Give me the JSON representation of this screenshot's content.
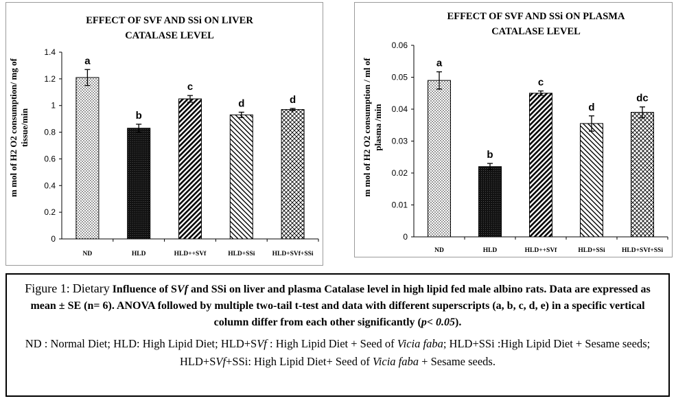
{
  "chart_data": [
    {
      "type": "bar",
      "title_line1": "EFFECT OF SVF AND SSi ON  LIVER",
      "title_line2": "CATALASE LEVEL",
      "ylabel_line1": "m mol of H2 O2 consumption/ mg of",
      "ylabel_line2": "tissue/min",
      "xlabel": "",
      "categories": [
        "ND",
        "HLD",
        "HLD++SVf",
        "HLD+SSi",
        "HLD+SVf+SSi"
      ],
      "values": [
        1.21,
        0.83,
        1.05,
        0.93,
        0.97
      ],
      "errors": [
        0.06,
        0.03,
        0.025,
        0.02,
        0.008
      ],
      "labels": [
        "a",
        "b",
        "c",
        "d",
        "d"
      ],
      "ylim": [
        0,
        1.4
      ],
      "yticks": [
        "0",
        "0.2",
        "0.4",
        "0.6",
        "0.8",
        "1",
        "1.2",
        "1.4"
      ],
      "patterns": [
        "dots",
        "dark",
        "diag-right",
        "diag-left",
        "cross"
      ]
    },
    {
      "type": "bar",
      "title_line1": "EFFECT OF SVF AND SSi  ON  PLASMA",
      "title_line2": "CATALASE LEVEL",
      "ylabel_line1": "m mol of H2 O2 consumption / ml of",
      "ylabel_line2": "plasma /min",
      "xlabel": "",
      "categories": [
        "ND",
        "HLD",
        "HLD++SVf",
        "HLD+SSi",
        "HLD+SVf+SSi"
      ],
      "values": [
        0.049,
        0.022,
        0.045,
        0.0355,
        0.039
      ],
      "errors": [
        0.0027,
        0.001,
        0.0007,
        0.0024,
        0.0017
      ],
      "labels": [
        "a",
        "b",
        "c",
        "d",
        "dc"
      ],
      "ylim": [
        0,
        0.06
      ],
      "yticks": [
        "0",
        "0.01",
        "0.02",
        "0.03",
        "0.04",
        "0.05",
        "0.06"
      ],
      "patterns": [
        "dots",
        "dark",
        "diag-right",
        "diag-left",
        "cross"
      ]
    }
  ],
  "caption": {
    "fig_label": "Figure 1:",
    "lead": "Dietary",
    "part1": "Influence of S",
    "svf_italic": "Vf",
    "part2": "and SSi on liver and plasma Catalase level in high lipid fed male albino rats. Data are expressed as mean ± SE (n= 6). ANOVA followed by multiple two-tail t-test and data with different superscripts (a, b, c, d, e) in a specific vertical column differ from each other significantly (",
    "p_italic": "p< 0.05",
    "part3": ").",
    "legend1": "ND : Normal Diet; HLD: High Lipid Diet; HLD+S",
    "legend_vf1": "Vf",
    "legend2": " : High Lipid Diet + Seed of ",
    "legend_vicia1": "Vicia faba",
    "legend3": "; HLD+SSi  :High Lipid Diet + Sesame seeds; HLD+S",
    "legend_vf2": "Vf",
    "legend4": "+SSi:  High Lipid Diet+ Seed of ",
    "legend_vicia2": "Vicia faba",
    "legend5": " + Sesame seeds."
  }
}
